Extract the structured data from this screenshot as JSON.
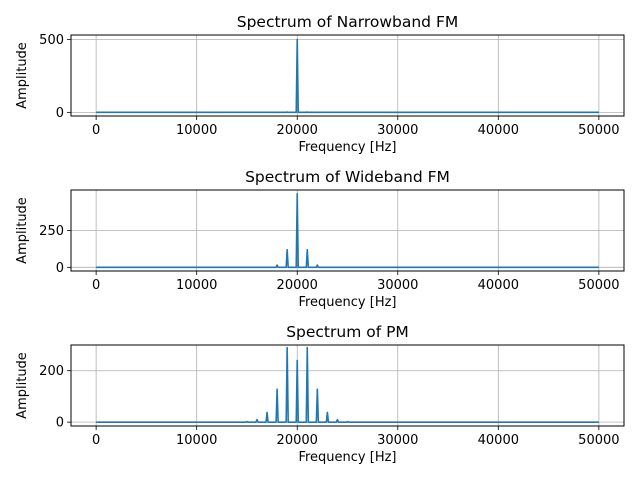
{
  "chart_data": [
    {
      "type": "line",
      "title": "Spectrum of Narrowband FM",
      "xlabel": "Frequency [Hz]",
      "ylabel": "Amplitude",
      "xlim": [
        -2500,
        52500
      ],
      "ylim": [
        -25,
        530
      ],
      "xticks": [
        0,
        10000,
        20000,
        30000,
        40000,
        50000
      ],
      "yticks": [
        0,
        500
      ],
      "grid": true,
      "color": "#1f77b4",
      "x_range": [
        0,
        50000
      ],
      "baseline": 0,
      "peaks": [
        {
          "x": 19000,
          "y": 2
        },
        {
          "x": 20000,
          "y": 500
        },
        {
          "x": 21000,
          "y": 2
        }
      ]
    },
    {
      "type": "line",
      "title": "Spectrum of Wideband FM",
      "xlabel": "Frequency [Hz]",
      "ylabel": "Amplitude",
      "xlim": [
        -2500,
        52500
      ],
      "ylim": [
        -25,
        525
      ],
      "xticks": [
        0,
        10000,
        20000,
        30000,
        40000,
        50000
      ],
      "yticks": [
        0,
        250
      ],
      "grid": true,
      "color": "#1f77b4",
      "x_range": [
        0,
        50000
      ],
      "baseline": 0,
      "peaks": [
        {
          "x": 18000,
          "y": 15
        },
        {
          "x": 19000,
          "y": 120
        },
        {
          "x": 20000,
          "y": 500
        },
        {
          "x": 21000,
          "y": 120
        },
        {
          "x": 22000,
          "y": 15
        }
      ]
    },
    {
      "type": "line",
      "title": "Spectrum of PM",
      "xlabel": "Frequency [Hz]",
      "ylabel": "Amplitude",
      "xlim": [
        -2500,
        52500
      ],
      "ylim": [
        -15,
        300
      ],
      "xticks": [
        0,
        10000,
        20000,
        30000,
        40000,
        50000
      ],
      "yticks": [
        0,
        200
      ],
      "grid": true,
      "color": "#1f77b4",
      "x_range": [
        0,
        50000
      ],
      "baseline": 0,
      "peaks": [
        {
          "x": 15000,
          "y": 2
        },
        {
          "x": 16000,
          "y": 10
        },
        {
          "x": 17000,
          "y": 38
        },
        {
          "x": 18000,
          "y": 128
        },
        {
          "x": 19000,
          "y": 290
        },
        {
          "x": 20000,
          "y": 240
        },
        {
          "x": 21000,
          "y": 290
        },
        {
          "x": 22000,
          "y": 128
        },
        {
          "x": 23000,
          "y": 38
        },
        {
          "x": 24000,
          "y": 10
        },
        {
          "x": 25000,
          "y": 2
        }
      ]
    }
  ]
}
